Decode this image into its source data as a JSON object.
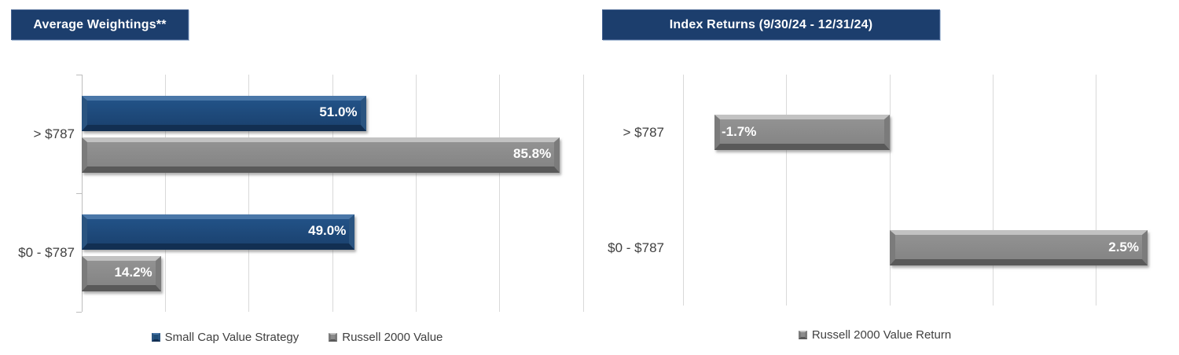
{
  "chart_data": [
    {
      "type": "bar",
      "orientation": "horizontal",
      "title": "Average Weightings**",
      "categories": [
        "> $787",
        "$0 - $787"
      ],
      "series": [
        {
          "name": "Small Cap Value Strategy",
          "color": "#1F4E79",
          "css": "blue",
          "values": [
            51.0,
            49.0
          ],
          "labels": [
            "51.0%",
            "49.0%"
          ]
        },
        {
          "name": "Russell 2000 Value",
          "color": "#8C8C8C",
          "css": "gray",
          "values": [
            85.8,
            14.2
          ],
          "labels": [
            "85.8%",
            "14.2%"
          ]
        }
      ],
      "xlim": [
        0,
        90
      ],
      "grid_step": 15,
      "grid": true,
      "value_label_position": "inside-end",
      "legend_position": "bottom"
    },
    {
      "type": "bar",
      "orientation": "horizontal",
      "title": "Index Returns (9/30/24 - 12/31/24)",
      "categories": [
        "> $787",
        "$0 - $787"
      ],
      "series": [
        {
          "name": "Russell 2000 Value Return",
          "color": "#8C8C8C",
          "css": "gray",
          "values": [
            -1.7,
            2.5
          ],
          "labels": [
            "-1.7%",
            "2.5%"
          ]
        }
      ],
      "xlim": [
        -2.5,
        2.5
      ],
      "grid_step": 1,
      "grid": true,
      "value_label_position": "inside-end",
      "legend_position": "bottom"
    }
  ],
  "colors": {
    "banner_bg": "#1C3E6D",
    "banner_text": "#FFFFFF",
    "bar_blue": "#1F4E79",
    "bar_gray": "#8C8C8C",
    "gridline": "#D9D9D9",
    "axis_line": "#BDBDBD",
    "label_text": "#404040",
    "bar_label_text": "#FFFFFF"
  }
}
